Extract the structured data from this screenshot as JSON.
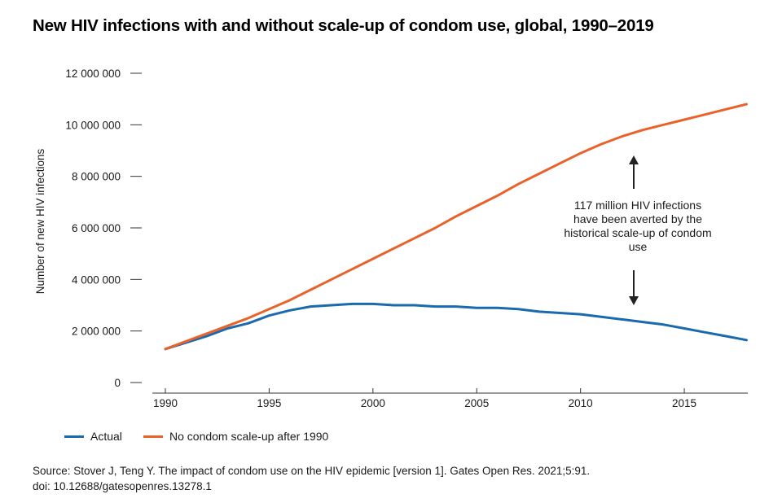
{
  "title": "New HIV infections with and without scale-up of condom use, global, 1990–2019",
  "annotation": "117 million HIV infections have been averted by the historical scale-up of condom use",
  "source_line1": "Source: Stover J, Teng Y. The impact of condom use on the HIV epidemic [version 1]. Gates Open Res. 2021;5:91.",
  "source_line2": "doi: 10.12688/gatesopenres.13278.1",
  "colors": {
    "actual": "#1b6aad",
    "no_scale_up": "#e8622a",
    "axis": "#333333"
  },
  "chart_data": {
    "type": "line",
    "title": "New HIV infections with and without scale-up of condom use, global, 1990–2019",
    "xlabel": "",
    "ylabel": "Number of new HIV infections",
    "xlim": [
      1990,
      2019
    ],
    "ylim": [
      0,
      12000000
    ],
    "x_ticks": [
      1990,
      1995,
      2000,
      2005,
      2010,
      2015
    ],
    "x_tick_labels": [
      "1990",
      "1995",
      "2000",
      "2005",
      "2010",
      "2015"
    ],
    "y_ticks": [
      0,
      2000000,
      4000000,
      6000000,
      8000000,
      10000000,
      12000000
    ],
    "y_tick_labels": [
      "0",
      "2 000 000",
      "4 000 000",
      "6 000 000",
      "8 000 000",
      "10 000 000",
      "12 000 000"
    ],
    "grid": false,
    "legend_position": "bottom-left",
    "x": [
      1990,
      1991,
      1992,
      1993,
      1994,
      1995,
      1996,
      1997,
      1998,
      1999,
      2000,
      2001,
      2002,
      2003,
      2004,
      2005,
      2006,
      2007,
      2008,
      2009,
      2010,
      2011,
      2012,
      2013,
      2014,
      2015,
      2016,
      2017,
      2018
    ],
    "series": [
      {
        "name": "Actual",
        "color": "#1b6aad",
        "values": [
          1300000,
          1550000,
          1800000,
          2100000,
          2300000,
          2600000,
          2800000,
          2950000,
          3000000,
          3050000,
          3050000,
          3000000,
          3000000,
          2950000,
          2950000,
          2900000,
          2900000,
          2850000,
          2750000,
          2700000,
          2650000,
          2550000,
          2450000,
          2350000,
          2250000,
          2100000,
          1950000,
          1800000,
          1650000
        ]
      },
      {
        "name": "No condom scale-up after 1990",
        "color": "#e8622a",
        "values": [
          1300000,
          1600000,
          1900000,
          2200000,
          2500000,
          2850000,
          3200000,
          3600000,
          4000000,
          4400000,
          4800000,
          5200000,
          5600000,
          6000000,
          6450000,
          6850000,
          7250000,
          7700000,
          8100000,
          8500000,
          8900000,
          9250000,
          9550000,
          9800000,
          10000000,
          10200000,
          10400000,
          10600000,
          10800000
        ]
      }
    ]
  }
}
